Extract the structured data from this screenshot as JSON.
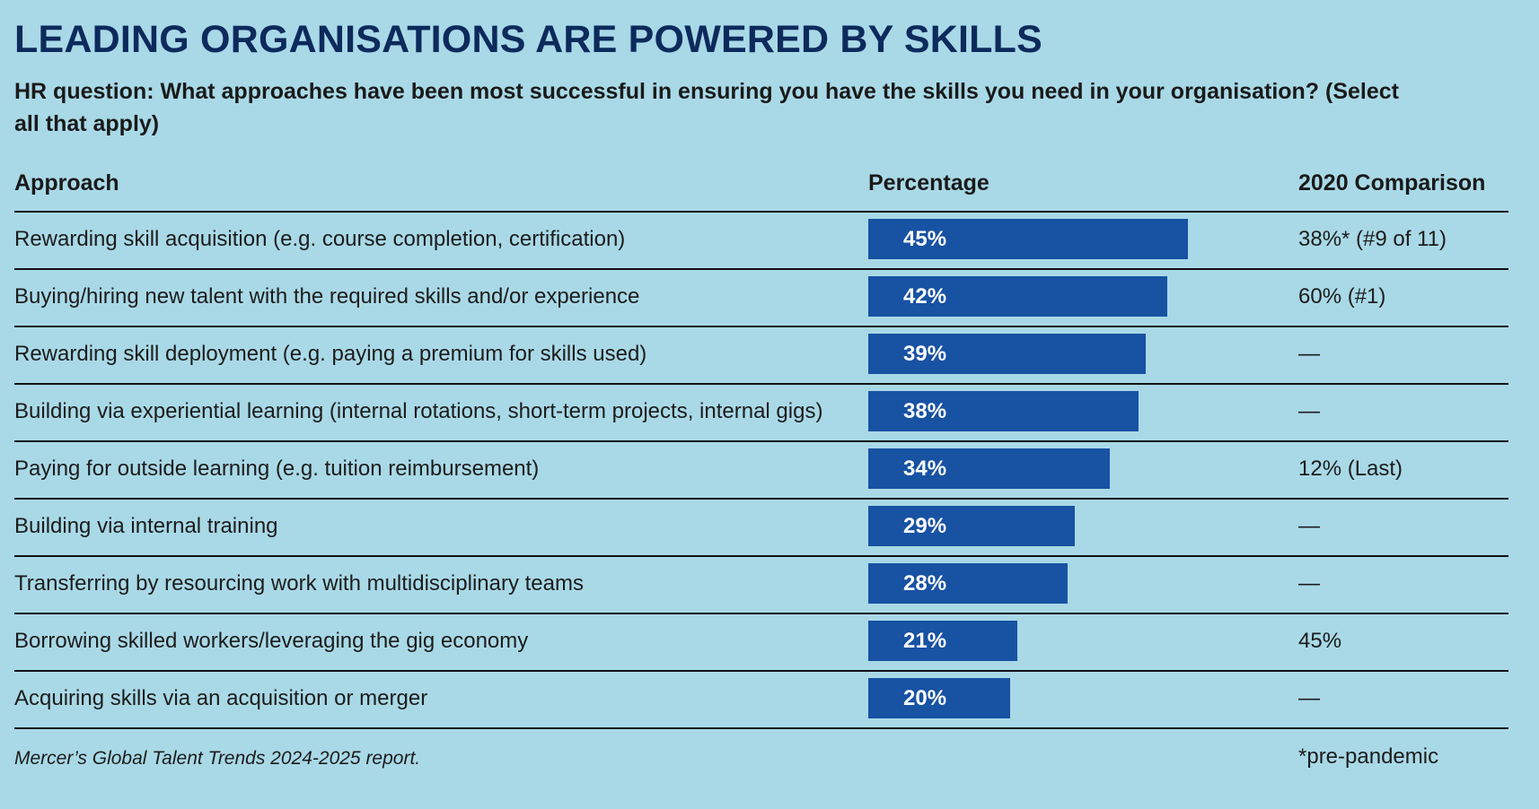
{
  "chart_data": {
    "type": "bar",
    "orientation": "horizontal",
    "title": "LEADING ORGANISATIONS ARE POWERED BY SKILLS",
    "subtitle": "HR question: What approaches have been most successful in ensuring you have the skills you need in your organisation? (Select all that apply)",
    "columns": {
      "approach": "Approach",
      "percentage": "Percentage",
      "comparison": "2020 Comparison"
    },
    "xlim": [
      0,
      100
    ],
    "categories": [
      "Rewarding skill acquisition (e.g. course completion, certification)",
      "Buying/hiring new talent with the required skills and/or experience",
      "Rewarding skill deployment (e.g. paying a premium for skills used)",
      "Building via experiential learning (internal rotations, short-term projects, internal gigs)",
      "Paying for outside learning (e.g. tuition reimbursement)",
      "Building via internal training",
      "Transferring by resourcing work with multidisciplinary teams",
      "Borrowing skilled workers/leveraging the gig economy",
      "Acquiring skills via an acquisition or merger"
    ],
    "values": [
      45,
      42,
      39,
      38,
      34,
      29,
      28,
      21,
      20
    ],
    "value_labels": [
      "45%",
      "42%",
      "39%",
      "38%",
      "34%",
      "29%",
      "28%",
      "21%",
      "20%"
    ],
    "comparison_2020": [
      "38%* (#9 of 11)",
      "60% (#1)",
      "—",
      "—",
      "12% (Last)",
      "—",
      "—",
      "45%",
      "—"
    ],
    "bar_color": "#1752a3",
    "source": "Mercer’s Global Talent Trends 2024-2025 report.",
    "footnote": "*pre-pandemic"
  },
  "colors": {
    "background": "#a9d9e7",
    "title": "#0d2a5c",
    "bar": "#1752a3"
  }
}
